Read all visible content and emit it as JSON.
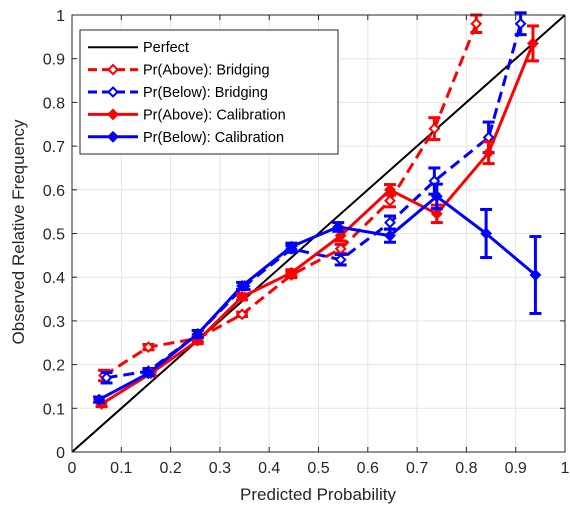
{
  "chart_data": {
    "type": "line",
    "title": "",
    "xlabel": "Predicted Probability",
    "ylabel": "Observed Relative Frequency",
    "xlim": [
      0,
      1
    ],
    "ylim": [
      0,
      1
    ],
    "xticks": [
      "0",
      "0.1",
      "0.2",
      "0.3",
      "0.4",
      "0.5",
      "0.6",
      "0.7",
      "0.8",
      "0.9",
      "1"
    ],
    "yticks": [
      "0",
      "0.1",
      "0.2",
      "0.3",
      "0.4",
      "0.5",
      "0.6",
      "0.7",
      "0.8",
      "0.9",
      "1"
    ],
    "grid": true,
    "legend_position": "top-left",
    "series": [
      {
        "name": "Perfect",
        "color": "#000000",
        "style": "solid",
        "marker": "none",
        "points": [
          [
            0,
            0
          ],
          [
            1,
            1
          ]
        ]
      },
      {
        "name": "Pr(Above): Bridging",
        "color": "#ff0000",
        "style": "dashed",
        "marker": "diamond-open",
        "points": [
          {
            "x": 0.065,
            "y": 0.175,
            "err": 0.012
          },
          {
            "x": 0.155,
            "y": 0.24,
            "err": 0.006
          },
          {
            "x": 0.255,
            "y": 0.26,
            "err": 0.008
          },
          {
            "x": 0.345,
            "y": 0.315,
            "err": 0.005
          },
          {
            "x": 0.445,
            "y": 0.405,
            "err": 0.006
          },
          {
            "x": 0.545,
            "y": 0.465,
            "err": 0.01
          },
          {
            "x": 0.645,
            "y": 0.575,
            "err": 0.014
          },
          {
            "x": 0.735,
            "y": 0.74,
            "err": 0.025
          },
          {
            "x": 0.82,
            "y": 0.98,
            "err": 0.02
          }
        ]
      },
      {
        "name": "Pr(Below): Bridging",
        "color": "#0000ff",
        "style": "dashed",
        "marker": "diamond-open",
        "points": [
          {
            "x": 0.07,
            "y": 0.17,
            "err": 0.012
          },
          {
            "x": 0.155,
            "y": 0.185,
            "err": 0.006
          },
          {
            "x": 0.255,
            "y": 0.27,
            "err": 0.008
          },
          {
            "x": 0.35,
            "y": 0.38,
            "err": 0.008
          },
          {
            "x": 0.445,
            "y": 0.465,
            "err": 0.008
          },
          {
            "x": 0.545,
            "y": 0.44,
            "err": 0.012
          },
          {
            "x": 0.645,
            "y": 0.525,
            "err": 0.015
          },
          {
            "x": 0.735,
            "y": 0.62,
            "err": 0.03
          },
          {
            "x": 0.845,
            "y": 0.72,
            "err": 0.035
          },
          {
            "x": 0.91,
            "y": 0.98,
            "err": 0.025
          }
        ]
      },
      {
        "name": "Pr(Above): Calibration",
        "color": "#ff0000",
        "style": "solid",
        "marker": "diamond-filled",
        "points": [
          {
            "x": 0.06,
            "y": 0.11,
            "err": 0.006
          },
          {
            "x": 0.16,
            "y": 0.18,
            "err": 0.006
          },
          {
            "x": 0.255,
            "y": 0.255,
            "err": 0.007
          },
          {
            "x": 0.345,
            "y": 0.355,
            "err": 0.007
          },
          {
            "x": 0.445,
            "y": 0.41,
            "err": 0.007
          },
          {
            "x": 0.545,
            "y": 0.495,
            "err": 0.012
          },
          {
            "x": 0.645,
            "y": 0.6,
            "err": 0.012
          },
          {
            "x": 0.74,
            "y": 0.545,
            "err": 0.02
          },
          {
            "x": 0.845,
            "y": 0.685,
            "err": 0.025
          },
          {
            "x": 0.935,
            "y": 0.935,
            "err": 0.04
          }
        ]
      },
      {
        "name": "Pr(Below): Calibration",
        "color": "#0000ff",
        "style": "solid",
        "marker": "diamond-filled",
        "points": [
          {
            "x": 0.055,
            "y": 0.12,
            "err": 0.006
          },
          {
            "x": 0.155,
            "y": 0.18,
            "err": 0.006
          },
          {
            "x": 0.255,
            "y": 0.27,
            "err": 0.008
          },
          {
            "x": 0.345,
            "y": 0.38,
            "err": 0.008
          },
          {
            "x": 0.445,
            "y": 0.47,
            "err": 0.008
          },
          {
            "x": 0.54,
            "y": 0.515,
            "err": 0.01
          },
          {
            "x": 0.645,
            "y": 0.495,
            "err": 0.015
          },
          {
            "x": 0.74,
            "y": 0.585,
            "err": 0.028
          },
          {
            "x": 0.84,
            "y": 0.5,
            "err": 0.055
          },
          {
            "x": 0.94,
            "y": 0.405,
            "err": 0.088
          }
        ]
      }
    ]
  }
}
